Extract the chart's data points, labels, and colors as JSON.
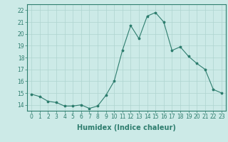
{
  "x": [
    0,
    1,
    2,
    3,
    4,
    5,
    6,
    7,
    8,
    9,
    10,
    11,
    12,
    13,
    14,
    15,
    16,
    17,
    18,
    19,
    20,
    21,
    22,
    23
  ],
  "y": [
    14.9,
    14.7,
    14.3,
    14.2,
    13.9,
    13.9,
    14.0,
    13.7,
    13.9,
    14.8,
    16.0,
    18.6,
    20.7,
    19.6,
    21.5,
    21.8,
    21.0,
    18.6,
    18.9,
    18.1,
    17.5,
    17.0,
    15.3,
    15.0
  ],
  "line_color": "#2e7d6e",
  "marker": "*",
  "marker_size": 2.5,
  "bg_color": "#cceae7",
  "grid_color": "#aed4cf",
  "xlabel": "Humidex (Indice chaleur)",
  "xlim": [
    -0.5,
    23.5
  ],
  "ylim": [
    13.5,
    22.5
  ],
  "yticks": [
    14,
    15,
    16,
    17,
    18,
    19,
    20,
    21,
    22
  ],
  "xticks": [
    0,
    1,
    2,
    3,
    4,
    5,
    6,
    7,
    8,
    9,
    10,
    11,
    12,
    13,
    14,
    15,
    16,
    17,
    18,
    19,
    20,
    21,
    22,
    23
  ],
  "tick_fontsize": 5.5,
  "xlabel_fontsize": 7,
  "axis_color": "#2e7d6e"
}
